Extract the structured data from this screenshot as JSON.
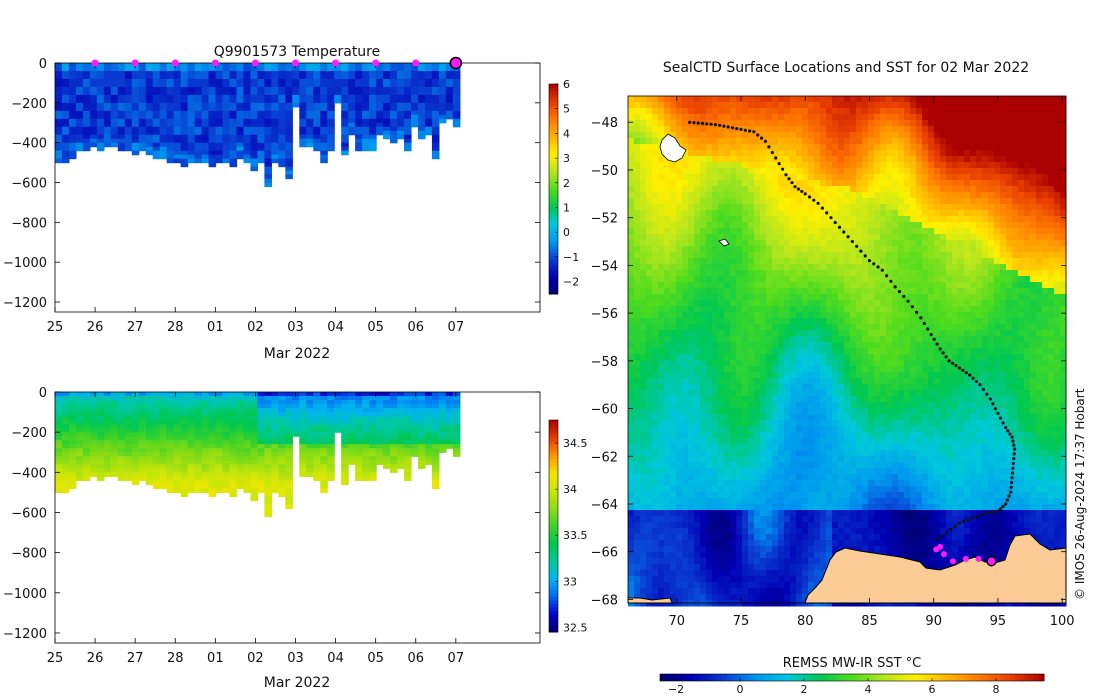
{
  "colors": {
    "temp_ramp": [
      "#00006e",
      "#0000b4",
      "#0a3cd2",
      "#0096f0",
      "#00c8dc",
      "#00c850",
      "#50dc1e",
      "#b4e61e",
      "#fff000",
      "#ffb400",
      "#ff7800",
      "#e63c00",
      "#aa0000"
    ],
    "sal_ramp": [
      "#00006e",
      "#0000c8",
      "#0064f0",
      "#00b4f0",
      "#00c8a0",
      "#00c850",
      "#3cd228",
      "#8cdc14",
      "#c8e60a",
      "#f0e600",
      "#ff9600",
      "#e63c00",
      "#aa0000"
    ],
    "sst_ramp": [
      "#00006e",
      "#0000b4",
      "#0a3cd2",
      "#0096f0",
      "#00c8dc",
      "#00c850",
      "#50dc1e",
      "#b4e61e",
      "#fff000",
      "#ffb400",
      "#ff7800",
      "#e63c00",
      "#aa0000"
    ],
    "land": "#fccb96",
    "track": "#111111",
    "marker": "#ff1aff"
  },
  "chart_data": [
    {
      "type": "heatmap",
      "id": "temperature_section",
      "title": "Q9901573  Temperature",
      "xlabel": "Mar 2022",
      "ylabel": "",
      "xlim": [
        25,
        37.1
      ],
      "ylim": [
        -1250,
        0
      ],
      "x_ticks": [
        {
          "v": 25,
          "label": "25"
        },
        {
          "v": 26,
          "label": "26"
        },
        {
          "v": 27,
          "label": "27"
        },
        {
          "v": 28,
          "label": "28"
        },
        {
          "v": 29,
          "label": "01"
        },
        {
          "v": 30,
          "label": "02"
        },
        {
          "v": 31,
          "label": "03"
        },
        {
          "v": 32,
          "label": "04"
        },
        {
          "v": 33,
          "label": "05"
        },
        {
          "v": 34,
          "label": "06"
        },
        {
          "v": 35,
          "label": "07"
        }
      ],
      "y_ticks": [
        0,
        -200,
        -400,
        -600,
        -800,
        -1000,
        -1200
      ],
      "profile_x_start": 25.0,
      "profile_x_end": 35.1,
      "profile_max_depth": [
        490,
        490,
        480,
        440,
        430,
        420,
        430,
        410,
        420,
        430,
        440,
        450,
        440,
        460,
        470,
        470,
        490,
        500,
        510,
        500,
        490,
        500,
        510,
        500,
        490,
        520,
        470,
        500,
        530,
        490,
        620,
        500,
        520,
        580,
        210,
        420,
        420,
        430,
        500,
        440,
        200,
        460,
        350,
        430,
        430,
        430,
        350,
        380,
        390,
        380,
        430,
        310,
        380,
        360,
        480,
        300,
        280,
        320
      ],
      "colorbar": {
        "min": -2.5,
        "max": 6,
        "ticks": [
          -2,
          -1,
          0,
          1,
          2,
          3,
          4,
          5,
          6
        ]
      },
      "profile_markers_x": [
        26,
        27,
        28,
        29,
        30,
        31,
        32,
        33,
        34
      ],
      "last_marker_x": 35
    },
    {
      "type": "heatmap",
      "id": "salinity_section",
      "title": "",
      "xlabel": "Mar 2022",
      "ylabel": "",
      "xlim": [
        25,
        37.1
      ],
      "ylim": [
        -1250,
        0
      ],
      "x_ticks": [
        {
          "v": 25,
          "label": "25"
        },
        {
          "v": 26,
          "label": "26"
        },
        {
          "v": 27,
          "label": "27"
        },
        {
          "v": 28,
          "label": "28"
        },
        {
          "v": 29,
          "label": "01"
        },
        {
          "v": 30,
          "label": "02"
        },
        {
          "v": 31,
          "label": "03"
        },
        {
          "v": 32,
          "label": "04"
        },
        {
          "v": 33,
          "label": "05"
        },
        {
          "v": 34,
          "label": "06"
        },
        {
          "v": 35,
          "label": "07"
        }
      ],
      "y_ticks": [
        0,
        -200,
        -400,
        -600,
        -800,
        -1000,
        -1200
      ],
      "colorbar": {
        "min": 32.45,
        "max": 34.75,
        "ticks": [
          32.5,
          33,
          33.5,
          34,
          34.5
        ]
      }
    },
    {
      "type": "heatmap",
      "id": "sst_map",
      "title": "SealCTD Surface Locations and SST for 02 Mar 2022",
      "xlim": [
        66.2,
        100.3
      ],
      "ylim": [
        -68.15,
        -46.9
      ],
      "x_ticks": [
        70,
        75,
        80,
        85,
        90,
        95,
        100
      ],
      "y_ticks": [
        -48,
        -50,
        -52,
        -54,
        -56,
        -58,
        -60,
        -62,
        -64,
        -66,
        -68
      ],
      "colorbar": {
        "label": "REMSS MW-IR SST °C",
        "min": -2.5,
        "max": 9.5,
        "ticks": [
          -2,
          0,
          2,
          4,
          6,
          8
        ]
      },
      "track": [
        [
          71.0,
          -48.0
        ],
        [
          72.0,
          -48.05
        ],
        [
          73.0,
          -48.1
        ],
        [
          74.0,
          -48.2
        ],
        [
          75.0,
          -48.3
        ],
        [
          76.0,
          -48.4
        ],
        [
          76.9,
          -48.8
        ],
        [
          77.7,
          -49.5
        ],
        [
          78.5,
          -50.2
        ],
        [
          79.2,
          -50.7
        ],
        [
          80.0,
          -51.0
        ],
        [
          81.0,
          -51.4
        ],
        [
          82.0,
          -52.0
        ],
        [
          83.0,
          -52.6
        ],
        [
          84.0,
          -53.2
        ],
        [
          85.0,
          -53.8
        ],
        [
          86.0,
          -54.2
        ],
        [
          87.0,
          -54.9
        ],
        [
          88.0,
          -55.5
        ],
        [
          89.0,
          -56.2
        ],
        [
          89.8,
          -56.9
        ],
        [
          90.5,
          -57.5
        ],
        [
          91.2,
          -58.0
        ],
        [
          92.0,
          -58.3
        ],
        [
          92.8,
          -58.6
        ],
        [
          93.6,
          -59.0
        ],
        [
          94.4,
          -59.6
        ],
        [
          95.0,
          -60.2
        ],
        [
          95.6,
          -60.8
        ],
        [
          96.1,
          -61.2
        ],
        [
          96.3,
          -61.7
        ],
        [
          96.2,
          -62.3
        ],
        [
          96.1,
          -62.9
        ],
        [
          96.0,
          -63.5
        ],
        [
          95.6,
          -64.0
        ],
        [
          95.0,
          -64.3
        ],
        [
          94.0,
          -64.4
        ],
        [
          93.0,
          -64.6
        ],
        [
          92.0,
          -64.8
        ],
        [
          91.0,
          -65.2
        ],
        [
          90.0,
          -65.6
        ]
      ],
      "surface_points": [
        [
          90.2,
          -65.9
        ],
        [
          90.5,
          -65.8
        ],
        [
          90.8,
          -66.1
        ],
        [
          91.5,
          -66.4
        ],
        [
          92.5,
          -66.3
        ],
        [
          93.5,
          -66.3
        ]
      ],
      "latest_point": [
        94.5,
        -66.4
      ]
    }
  ],
  "footer": {
    "credit": "© IMOS 26-Aug-2024 17:37 Hobart"
  }
}
